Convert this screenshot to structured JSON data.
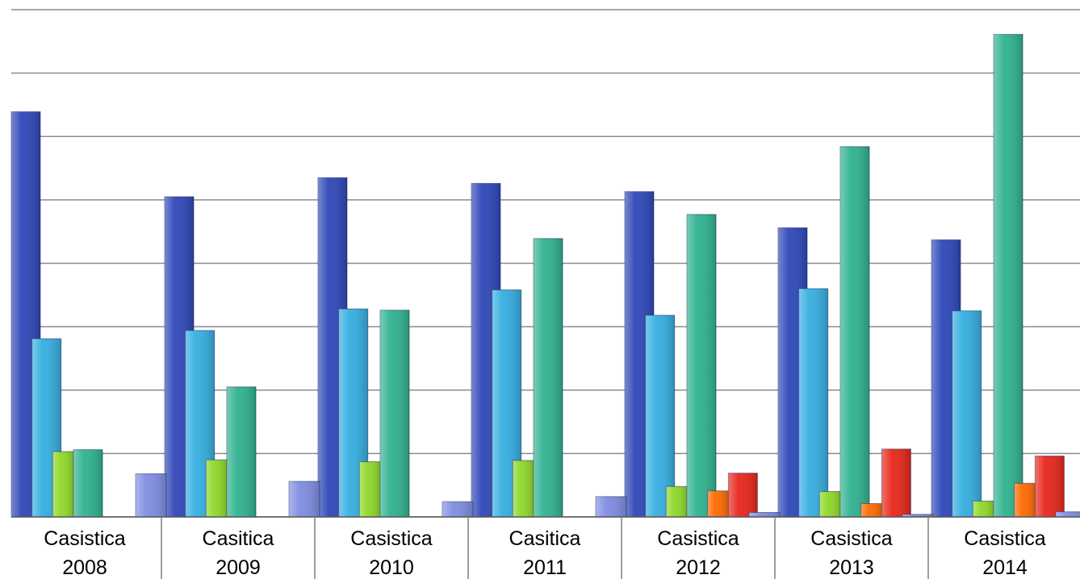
{
  "chart_data": {
    "type": "bar",
    "title": "",
    "xlabel": "",
    "ylabel": "",
    "ylim": [
      0,
      8
    ],
    "grid": true,
    "legend": "none",
    "categories": [
      [
        "Casistica",
        "2008"
      ],
      [
        "Casitica",
        "2009"
      ],
      [
        "Casistica",
        "2010"
      ],
      [
        "Casitica",
        "2011"
      ],
      [
        "Casistica",
        "2012"
      ],
      [
        "Casistica",
        "2013"
      ],
      [
        "Casistica",
        "2014"
      ]
    ],
    "series": [
      {
        "color": "#2f47b8",
        "values": [
          6.39,
          5.05,
          5.35,
          5.26,
          5.13,
          4.56,
          4.37
        ]
      },
      {
        "color": "#35aee0",
        "values": [
          2.81,
          2.94,
          3.28,
          3.58,
          3.18,
          3.6,
          3.25
        ]
      },
      {
        "color": "#8fd82a",
        "values": [
          1.03,
          0.9,
          0.87,
          0.89,
          0.48,
          0.4,
          0.25
        ]
      },
      {
        "color": "#2fb28f",
        "values": [
          1.06,
          2.05,
          3.26,
          4.39,
          4.77,
          5.84,
          7.61
        ]
      },
      {
        "color": "#ff6a00",
        "values": [
          0,
          0,
          0,
          0,
          0.41,
          0.21,
          0.53
        ]
      },
      {
        "color": "#e8261a",
        "values": [
          0,
          0,
          0,
          0,
          0.69,
          1.07,
          0.96
        ]
      },
      {
        "color": "#7f8ce0",
        "values": [
          0.68,
          0.56,
          0.24,
          0.32,
          0.07,
          0.04,
          0.08
        ]
      }
    ]
  }
}
